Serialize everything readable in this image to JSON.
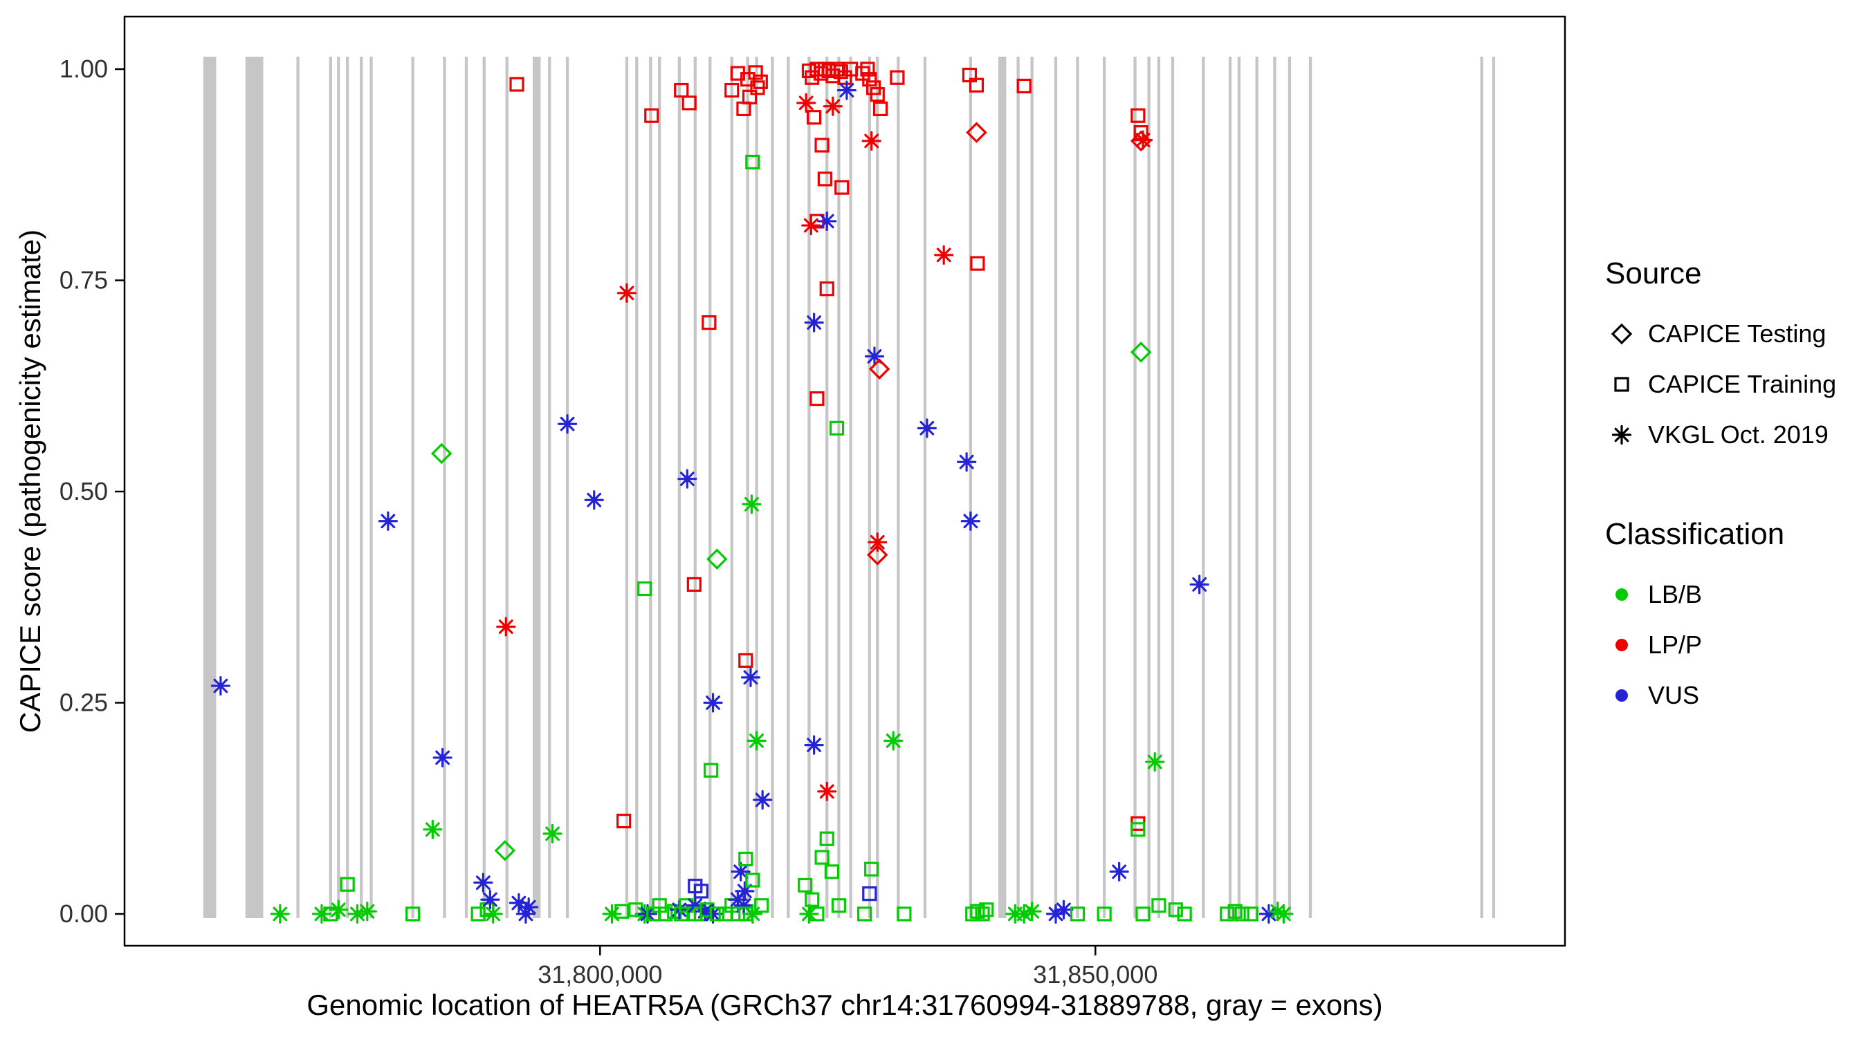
{
  "figure": {
    "title": ""
  },
  "legend": {
    "source": {
      "title": "Source",
      "items": [
        {
          "label": "CAPICE Testing",
          "shape": "diamond"
        },
        {
          "label": "CAPICE Training",
          "shape": "square"
        },
        {
          "label": "VKGL Oct. 2019",
          "shape": "asterisk"
        }
      ]
    },
    "classification": {
      "title": "Classification",
      "items": [
        {
          "label": "LB/B",
          "color": "#00cc00"
        },
        {
          "label": "LP/P",
          "color": "#ee0000"
        },
        {
          "label": "VUS",
          "color": "#2424d6"
        }
      ]
    }
  },
  "chart_data": {
    "type": "scatter",
    "title": "",
    "xlabel": "Genomic location of HEATR5A (GRCh37 chr14:31760994-31889788, gray = exons)",
    "ylabel": "CAPICE score (pathogenicity estimate)",
    "xlim": [
      31752000,
      31897400
    ],
    "ylim": [
      0,
      1
    ],
    "x_ticks": [
      {
        "value": 31800000,
        "label": "31,800,000"
      },
      {
        "value": 31850000,
        "label": "31,850,000"
      }
    ],
    "y_ticks": [
      {
        "value": 0.0,
        "label": "0.00"
      },
      {
        "value": 0.25,
        "label": "0.25"
      },
      {
        "value": 0.5,
        "label": "0.50"
      },
      {
        "value": 0.75,
        "label": "0.75"
      },
      {
        "value": 1.0,
        "label": "1.00"
      }
    ],
    "colors": {
      "LB/B": "#00cc00",
      "LP/P": "#ee0000",
      "VUS": "#2424d6"
    },
    "shapes": {
      "testing": "diamond",
      "training": "square",
      "vkgl": "asterisk"
    },
    "exon_color": "#c6c6c6",
    "exons_format": [
      "genomic_position",
      "width_bp"
    ],
    "exons": [
      [
        31760600,
        1300
      ],
      [
        31765100,
        1800
      ],
      [
        31769500,
        300
      ],
      [
        31772800,
        300
      ],
      [
        31773600,
        300
      ],
      [
        31774500,
        300
      ],
      [
        31775900,
        300
      ],
      [
        31776900,
        300
      ],
      [
        31781100,
        300
      ],
      [
        31784300,
        300
      ],
      [
        31786500,
        300
      ],
      [
        31788300,
        300
      ],
      [
        31790600,
        300
      ],
      [
        31793600,
        800
      ],
      [
        31794900,
        300
      ],
      [
        31796700,
        300
      ],
      [
        31802700,
        300
      ],
      [
        31803700,
        300
      ],
      [
        31805100,
        300
      ],
      [
        31806000,
        300
      ],
      [
        31808000,
        300
      ],
      [
        31809600,
        300
      ],
      [
        31811100,
        300
      ],
      [
        31813300,
        300
      ],
      [
        31814900,
        300
      ],
      [
        31815800,
        300
      ],
      [
        31817400,
        300
      ],
      [
        31819000,
        300
      ],
      [
        31821100,
        300
      ],
      [
        31822900,
        300
      ],
      [
        31824100,
        300
      ],
      [
        31825300,
        300
      ],
      [
        31827200,
        300
      ],
      [
        31828000,
        300
      ],
      [
        31830100,
        300
      ],
      [
        31832800,
        300
      ],
      [
        31837400,
        300
      ],
      [
        31840600,
        800
      ],
      [
        31842200,
        300
      ],
      [
        31843600,
        300
      ],
      [
        31846000,
        300
      ],
      [
        31848200,
        300
      ],
      [
        31850900,
        300
      ],
      [
        31854000,
        300
      ],
      [
        31855400,
        300
      ],
      [
        31856400,
        300
      ],
      [
        31857800,
        300
      ],
      [
        31860900,
        300
      ],
      [
        31863600,
        300
      ],
      [
        31864500,
        300
      ],
      [
        31866300,
        300
      ],
      [
        31868100,
        300
      ],
      [
        31869600,
        300
      ],
      [
        31871700,
        300
      ],
      [
        31889000,
        300
      ],
      [
        31890200,
        300
      ]
    ],
    "points_format": [
      "genomic_position",
      "capice_score",
      "classification",
      "source"
    ],
    "points": [
      [
        31761700,
        0.27,
        "VUS",
        "vkgl"
      ],
      [
        31767700,
        0,
        "LB/B",
        "vkgl"
      ],
      [
        31771900,
        0,
        "LB/B",
        "vkgl"
      ],
      [
        31772800,
        0,
        "LB/B",
        "training"
      ],
      [
        31773600,
        0.005,
        "LB/B",
        "vkgl"
      ],
      [
        31774500,
        0.035,
        "LB/B",
        "training"
      ],
      [
        31775500,
        0,
        "LB/B",
        "vkgl"
      ],
      [
        31776500,
        0.003,
        "LB/B",
        "vkgl"
      ],
      [
        31778600,
        0.465,
        "VUS",
        "vkgl"
      ],
      [
        31781100,
        0,
        "LB/B",
        "training"
      ],
      [
        31783100,
        0.1,
        "LB/B",
        "vkgl"
      ],
      [
        31784000,
        0.545,
        "LB/B",
        "testing"
      ],
      [
        31784100,
        0.185,
        "VUS",
        "vkgl"
      ],
      [
        31787700,
        0,
        "LB/B",
        "training"
      ],
      [
        31788200,
        0.037,
        "VUS",
        "vkgl"
      ],
      [
        31788600,
        0.005,
        "LB/B",
        "training"
      ],
      [
        31788900,
        0.017,
        "VUS",
        "vkgl"
      ],
      [
        31789200,
        0,
        "LB/B",
        "vkgl"
      ],
      [
        31790400,
        0.075,
        "LB/B",
        "testing"
      ],
      [
        31790500,
        0.34,
        "LP/P",
        "vkgl"
      ],
      [
        31791600,
        0.982,
        "LP/P",
        "training"
      ],
      [
        31791800,
        0.013,
        "VUS",
        "vkgl"
      ],
      [
        31792500,
        0,
        "VUS",
        "vkgl"
      ],
      [
        31792800,
        0.008,
        "VUS",
        "vkgl"
      ],
      [
        31795200,
        0.095,
        "LB/B",
        "vkgl"
      ],
      [
        31796700,
        0.58,
        "VUS",
        "vkgl"
      ],
      [
        31799400,
        0.49,
        "VUS",
        "vkgl"
      ],
      [
        31801200,
        0,
        "LB/B",
        "vkgl"
      ],
      [
        31802200,
        0.003,
        "LB/B",
        "training"
      ],
      [
        31802400,
        0.11,
        "LP/P",
        "training"
      ],
      [
        31802700,
        0.735,
        "LP/P",
        "vkgl"
      ],
      [
        31803600,
        0.005,
        "LB/B",
        "training"
      ],
      [
        31804500,
        0,
        "LB/B",
        "vkgl"
      ],
      [
        31804500,
        0.385,
        "LB/B",
        "training"
      ],
      [
        31804800,
        0,
        "VUS",
        "vkgl"
      ],
      [
        31805200,
        0.945,
        "LP/P",
        "training"
      ],
      [
        31805400,
        0,
        "LB/B",
        "training"
      ],
      [
        31806000,
        0.01,
        "LB/B",
        "training"
      ],
      [
        31806600,
        0,
        "LB/B",
        "training"
      ],
      [
        31807500,
        0.003,
        "LB/B",
        "training"
      ],
      [
        31808000,
        0.005,
        "VUS",
        "vkgl"
      ],
      [
        31808200,
        0.975,
        "LP/P",
        "training"
      ],
      [
        31808200,
        0,
        "LB/B",
        "training"
      ],
      [
        31808700,
        0.01,
        "LB/B",
        "training"
      ],
      [
        31808800,
        0.515,
        "VUS",
        "vkgl"
      ],
      [
        31809000,
        0.96,
        "LP/P",
        "training"
      ],
      [
        31809500,
        0.39,
        "LP/P",
        "training"
      ],
      [
        31809600,
        0,
        "LB/B",
        "training"
      ],
      [
        31809600,
        0.01,
        "VUS",
        "vkgl"
      ],
      [
        31809600,
        0.033,
        "VUS",
        "training"
      ],
      [
        31810200,
        0.027,
        "VUS",
        "training"
      ],
      [
        31810200,
        0,
        "LB/B",
        "training"
      ],
      [
        31810600,
        0.003,
        "VUS",
        "vkgl"
      ],
      [
        31810800,
        0.005,
        "LB/B",
        "training"
      ],
      [
        31811000,
        0.7,
        "LP/P",
        "training"
      ],
      [
        31811200,
        0.17,
        "LB/B",
        "training"
      ],
      [
        31811400,
        0.25,
        "VUS",
        "vkgl"
      ],
      [
        31811400,
        0,
        "VUS",
        "vkgl"
      ],
      [
        31811800,
        0.42,
        "LB/B",
        "testing"
      ],
      [
        31811800,
        0,
        "LB/B",
        "training"
      ],
      [
        31812700,
        0,
        "LB/B",
        "training"
      ],
      [
        31813300,
        0.975,
        "LP/P",
        "training"
      ],
      [
        31813300,
        0.01,
        "LB/B",
        "training"
      ],
      [
        31813900,
        0.995,
        "LP/P",
        "training"
      ],
      [
        31813900,
        0.017,
        "VUS",
        "vkgl"
      ],
      [
        31813900,
        0,
        "LB/B",
        "training"
      ],
      [
        31814200,
        0.05,
        "VUS",
        "vkgl"
      ],
      [
        31814500,
        0.953,
        "LP/P",
        "training"
      ],
      [
        31814500,
        0.01,
        "VUS",
        "vkgl"
      ],
      [
        31814600,
        0.027,
        "VUS",
        "vkgl"
      ],
      [
        31814700,
        0.3,
        "LP/P",
        "training"
      ],
      [
        31814700,
        0.065,
        "LB/B",
        "training"
      ],
      [
        31814700,
        0,
        "LB/B",
        "training"
      ],
      [
        31814900,
        0.988,
        "LP/P",
        "training"
      ],
      [
        31815100,
        0.967,
        "LP/P",
        "training"
      ],
      [
        31815200,
        0.28,
        "VUS",
        "vkgl"
      ],
      [
        31815300,
        0.485,
        "LB/B",
        "vkgl"
      ],
      [
        31815400,
        0.89,
        "LB/B",
        "training"
      ],
      [
        31815400,
        0.04,
        "LB/B",
        "training"
      ],
      [
        31815400,
        0,
        "LB/B",
        "vkgl"
      ],
      [
        31815700,
        0.996,
        "LP/P",
        "training"
      ],
      [
        31815800,
        0.205,
        "LB/B",
        "vkgl"
      ],
      [
        31815900,
        0.978,
        "LP/P",
        "training"
      ],
      [
        31816200,
        0.985,
        "LP/P",
        "training"
      ],
      [
        31816300,
        0.01,
        "LB/B",
        "training"
      ],
      [
        31816400,
        0.135,
        "VUS",
        "vkgl"
      ],
      [
        31820700,
        0.034,
        "LB/B",
        "training"
      ],
      [
        31820800,
        0.96,
        "LP/P",
        "vkgl"
      ],
      [
        31821100,
        0.998,
        "LP/P",
        "training"
      ],
      [
        31821100,
        0,
        "LB/B",
        "vkgl"
      ],
      [
        31821300,
        0.815,
        "LP/P",
        "vkgl"
      ],
      [
        31821400,
        0.99,
        "LP/P",
        "training"
      ],
      [
        31821400,
        0.017,
        "LB/B",
        "training"
      ],
      [
        31821600,
        0.943,
        "LP/P",
        "training"
      ],
      [
        31821600,
        0.7,
        "VUS",
        "vkgl"
      ],
      [
        31821600,
        0.2,
        "VUS",
        "vkgl"
      ],
      [
        31821900,
        1,
        "LP/P",
        "training"
      ],
      [
        31821900,
        0.82,
        "LP/P",
        "training"
      ],
      [
        31821900,
        0.61,
        "LP/P",
        "training"
      ],
      [
        31821900,
        0,
        "LB/B",
        "training"
      ],
      [
        31822300,
        0.995,
        "LP/P",
        "training"
      ],
      [
        31822400,
        0.91,
        "LP/P",
        "training"
      ],
      [
        31822400,
        0.067,
        "LB/B",
        "training"
      ],
      [
        31822700,
        1,
        "LP/P",
        "training"
      ],
      [
        31822700,
        0.87,
        "LP/P",
        "training"
      ],
      [
        31822900,
        0.82,
        "VUS",
        "vkgl"
      ],
      [
        31822900,
        0.74,
        "LP/P",
        "training"
      ],
      [
        31822900,
        0.145,
        "LP/P",
        "vkgl"
      ],
      [
        31822900,
        0.089,
        "LB/B",
        "training"
      ],
      [
        31823100,
        0.998,
        "LP/P",
        "training"
      ],
      [
        31823400,
        0.05,
        "LB/B",
        "training"
      ],
      [
        31823500,
        0.992,
        "LP/P",
        "training"
      ],
      [
        31823500,
        0.956,
        "LP/P",
        "vkgl"
      ],
      [
        31823900,
        1,
        "LP/P",
        "training"
      ],
      [
        31823900,
        0.575,
        "LB/B",
        "training"
      ],
      [
        31824100,
        0.01,
        "LB/B",
        "training"
      ],
      [
        31824300,
        0.997,
        "LP/P",
        "training"
      ],
      [
        31824400,
        0.86,
        "LP/P",
        "training"
      ],
      [
        31824700,
        0.99,
        "LP/P",
        "training"
      ],
      [
        31824900,
        0.975,
        "VUS",
        "vkgl"
      ],
      [
        31825300,
        1,
        "LP/P",
        "training"
      ],
      [
        31826500,
        0.995,
        "LP/P",
        "training"
      ],
      [
        31826700,
        0,
        "LB/B",
        "training"
      ],
      [
        31827000,
        1,
        "LP/P",
        "training"
      ],
      [
        31827200,
        0.988,
        "LP/P",
        "training"
      ],
      [
        31827200,
        0.024,
        "VUS",
        "training"
      ],
      [
        31827400,
        0.915,
        "LP/P",
        "vkgl"
      ],
      [
        31827400,
        0.053,
        "LB/B",
        "training"
      ],
      [
        31827600,
        0.978,
        "LP/P",
        "training"
      ],
      [
        31827700,
        0.66,
        "VUS",
        "vkgl"
      ],
      [
        31828000,
        0.97,
        "LP/P",
        "training"
      ],
      [
        31828000,
        0.44,
        "LP/P",
        "vkgl"
      ],
      [
        31828000,
        0.425,
        "LP/P",
        "testing"
      ],
      [
        31828200,
        0.645,
        "LP/P",
        "testing"
      ],
      [
        31828300,
        0.953,
        "LP/P",
        "training"
      ],
      [
        31829600,
        0.205,
        "LB/B",
        "vkgl"
      ],
      [
        31830000,
        0.99,
        "LP/P",
        "training"
      ],
      [
        31830700,
        0,
        "LB/B",
        "training"
      ],
      [
        31833000,
        0.575,
        "VUS",
        "vkgl"
      ],
      [
        31834700,
        0.78,
        "LP/P",
        "vkgl"
      ],
      [
        31837000,
        0.535,
        "VUS",
        "vkgl"
      ],
      [
        31837300,
        0.993,
        "LP/P",
        "training"
      ],
      [
        31837400,
        0.465,
        "VUS",
        "vkgl"
      ],
      [
        31837600,
        0,
        "LB/B",
        "training"
      ],
      [
        31838000,
        0.981,
        "LP/P",
        "training"
      ],
      [
        31838000,
        0.925,
        "LP/P",
        "testing"
      ],
      [
        31838100,
        0.77,
        "LP/P",
        "training"
      ],
      [
        31838100,
        0.003,
        "LB/B",
        "training"
      ],
      [
        31838600,
        0,
        "LB/B",
        "training"
      ],
      [
        31839000,
        0.005,
        "LB/B",
        "training"
      ],
      [
        31841900,
        0,
        "LB/B",
        "vkgl"
      ],
      [
        31842800,
        0.98,
        "LP/P",
        "training"
      ],
      [
        31842800,
        0,
        "LB/B",
        "vkgl"
      ],
      [
        31843600,
        0.003,
        "LB/B",
        "vkgl"
      ],
      [
        31846000,
        0,
        "VUS",
        "vkgl"
      ],
      [
        31846800,
        0.005,
        "VUS",
        "vkgl"
      ],
      [
        31848200,
        0,
        "LB/B",
        "training"
      ],
      [
        31850900,
        0,
        "LB/B",
        "training"
      ],
      [
        31852400,
        0.05,
        "VUS",
        "vkgl"
      ],
      [
        31854300,
        0.945,
        "LP/P",
        "training"
      ],
      [
        31854300,
        0.107,
        "LP/P",
        "training"
      ],
      [
        31854300,
        0.1,
        "LB/B",
        "training"
      ],
      [
        31854600,
        0.925,
        "LP/P",
        "training"
      ],
      [
        31854600,
        0.915,
        "LP/P",
        "testing"
      ],
      [
        31854800,
        0.916,
        "LP/P",
        "vkgl"
      ],
      [
        31854600,
        0.665,
        "LB/B",
        "testing"
      ],
      [
        31854800,
        0,
        "LB/B",
        "training"
      ],
      [
        31856000,
        0.18,
        "LB/B",
        "vkgl"
      ],
      [
        31856400,
        0.01,
        "LB/B",
        "training"
      ],
      [
        31858100,
        0.005,
        "LB/B",
        "training"
      ],
      [
        31859000,
        0,
        "LB/B",
        "training"
      ],
      [
        31860500,
        0.39,
        "VUS",
        "vkgl"
      ],
      [
        31863300,
        0,
        "LB/B",
        "training"
      ],
      [
        31864100,
        0.003,
        "LB/B",
        "training"
      ],
      [
        31864800,
        0,
        "LB/B",
        "training"
      ],
      [
        31865700,
        0,
        "LB/B",
        "training"
      ],
      [
        31867500,
        0,
        "VUS",
        "vkgl"
      ],
      [
        31868400,
        0.003,
        "LB/B",
        "vkgl"
      ],
      [
        31869000,
        0,
        "LB/B",
        "vkgl"
      ]
    ]
  }
}
